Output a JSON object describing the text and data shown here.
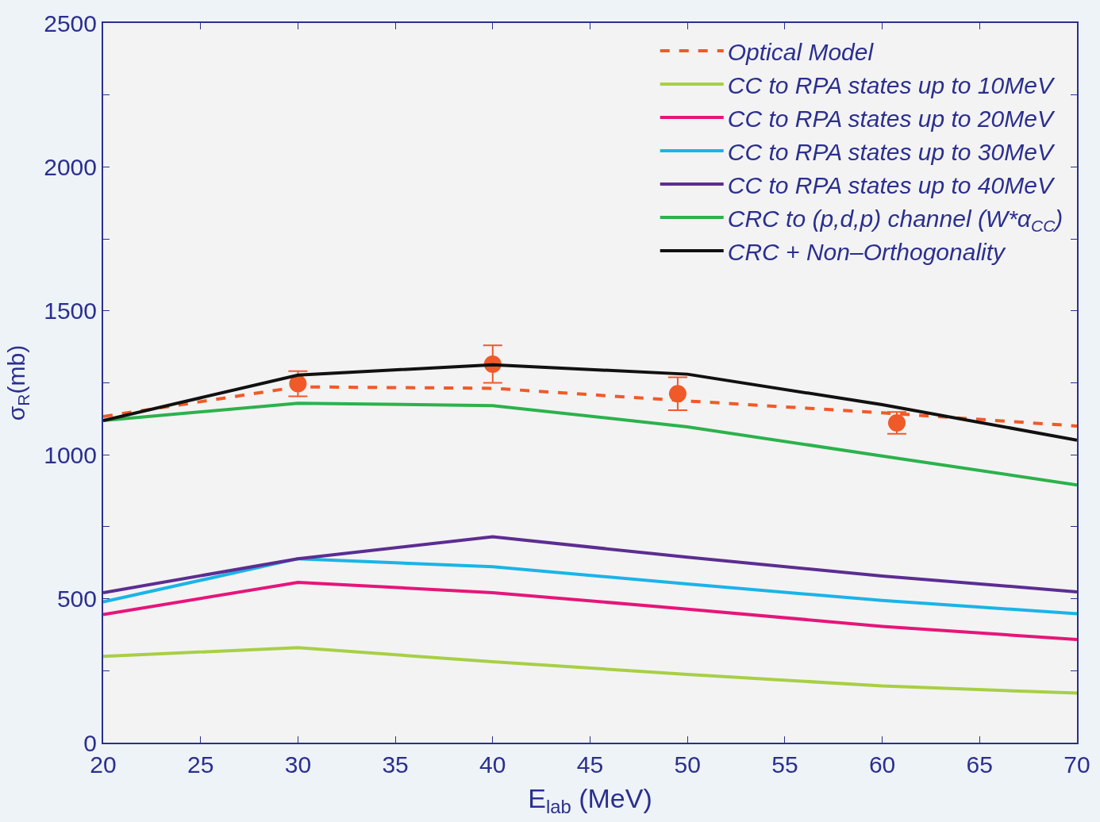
{
  "chart_data": {
    "type": "line",
    "xlabel": "E$_{lab}$ (MeV)",
    "ylabel": "σ$_{R}$(mb)",
    "xlim": [
      20,
      70
    ],
    "xticks": [
      20,
      25,
      30,
      35,
      40,
      45,
      50,
      55,
      60,
      65,
      70
    ],
    "ylim": [
      0,
      2500
    ],
    "yticks": [
      0,
      {
        "value": 250,
        "label": null
      },
      500,
      {
        "value": 750,
        "label": null
      },
      1000,
      {
        "value": 1250,
        "label": null
      },
      1500,
      {
        "value": 1750,
        "label": null
      },
      2000,
      {
        "value": 2250,
        "label": null
      },
      2500
    ],
    "x": [
      20,
      30,
      40,
      50,
      60,
      70
    ],
    "grid": false,
    "legend": "top right",
    "marker": "none",
    "series": [
      {
        "name": "Optical Model",
        "color": "#f05a28",
        "line_style": "dashed",
        "values": [
          1133,
          1236,
          1231,
          1187,
          1146,
          1100
        ]
      },
      {
        "name": "CC to RPA states up to 10MeV",
        "color": "#a8cf45",
        "values": [
          300,
          330,
          281,
          237,
          197,
          172
        ]
      },
      {
        "name": "CC to RPA states up to 20MeV",
        "color": "#e6157a",
        "values": [
          445,
          557,
          521,
          464,
          404,
          358
        ]
      },
      {
        "name": "CC to RPA states up to 30MeV",
        "color": "#1ab4e8",
        "values": [
          489,
          639,
          611,
          551,
          494,
          448
        ]
      },
      {
        "name": "CC to RPA states up to 40MeV",
        "color": "#5c2d91",
        "values": [
          521,
          639,
          715,
          644,
          579,
          524
        ]
      },
      {
        "name": "CRC to (p,d,p) channel (W*α$_{CC}$)",
        "color": "#2bb24c",
        "values": [
          1119,
          1179,
          1171,
          1097,
          996,
          895
        ]
      },
      {
        "name": "CRC + Non–Orthogonality",
        "color": "#111111",
        "values": [
          1119,
          1277,
          1313,
          1280,
          1174,
          1051
        ]
      },
      {
        "type": "scatter",
        "marker": "circle",
        "color": "#f05a28",
        "x": [
          30,
          40,
          49.5,
          60.75
        ],
        "values": [
          1247,
          1315,
          1212,
          1111
        ],
        "errors": [
          44,
          65,
          57,
          38
        ]
      }
    ]
  }
}
